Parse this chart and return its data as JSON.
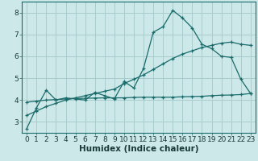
{
  "title": "",
  "xlabel": "Humidex (Indice chaleur)",
  "bg_color": "#cce8e8",
  "grid_color": "#aacccc",
  "line_color": "#1a6b6b",
  "xlim": [
    -0.5,
    23.5
  ],
  "ylim": [
    2.5,
    8.5
  ],
  "xticks": [
    0,
    1,
    2,
    3,
    4,
    5,
    6,
    7,
    8,
    9,
    10,
    11,
    12,
    13,
    14,
    15,
    16,
    17,
    18,
    19,
    20,
    21,
    22,
    23
  ],
  "yticks": [
    3,
    4,
    5,
    6,
    7,
    8
  ],
  "line1_x": [
    0,
    1,
    2,
    3,
    4,
    5,
    6,
    7,
    8,
    9,
    10,
    11,
    12,
    13,
    14,
    15,
    16,
    17,
    18,
    19,
    20,
    21,
    22,
    23
  ],
  "line1_y": [
    2.7,
    3.65,
    4.45,
    4.0,
    4.1,
    4.05,
    4.0,
    4.35,
    4.2,
    4.05,
    4.85,
    4.55,
    5.45,
    7.1,
    7.35,
    8.1,
    7.75,
    7.3,
    6.55,
    6.35,
    6.0,
    5.95,
    4.95,
    4.3
  ],
  "line2_x": [
    0,
    1,
    2,
    3,
    4,
    5,
    6,
    7,
    8,
    9,
    10,
    11,
    12,
    13,
    14,
    15,
    16,
    17,
    18,
    19,
    20,
    21,
    22,
    23
  ],
  "line2_y": [
    3.3,
    3.5,
    3.7,
    3.85,
    4.0,
    4.1,
    4.2,
    4.3,
    4.4,
    4.5,
    4.75,
    4.95,
    5.15,
    5.4,
    5.65,
    5.9,
    6.1,
    6.25,
    6.4,
    6.5,
    6.6,
    6.65,
    6.55,
    6.5
  ],
  "line3_x": [
    0,
    1,
    2,
    3,
    4,
    5,
    6,
    7,
    8,
    9,
    10,
    11,
    12,
    13,
    14,
    15,
    16,
    17,
    18,
    19,
    20,
    21,
    22,
    23
  ],
  "line3_y": [
    3.9,
    3.95,
    4.0,
    4.02,
    4.05,
    4.07,
    4.08,
    4.09,
    4.1,
    4.1,
    4.1,
    4.12,
    4.13,
    4.13,
    4.13,
    4.13,
    4.15,
    4.16,
    4.17,
    4.2,
    4.22,
    4.23,
    4.25,
    4.3
  ],
  "tick_fontsize": 6.5,
  "xlabel_fontsize": 7.5
}
